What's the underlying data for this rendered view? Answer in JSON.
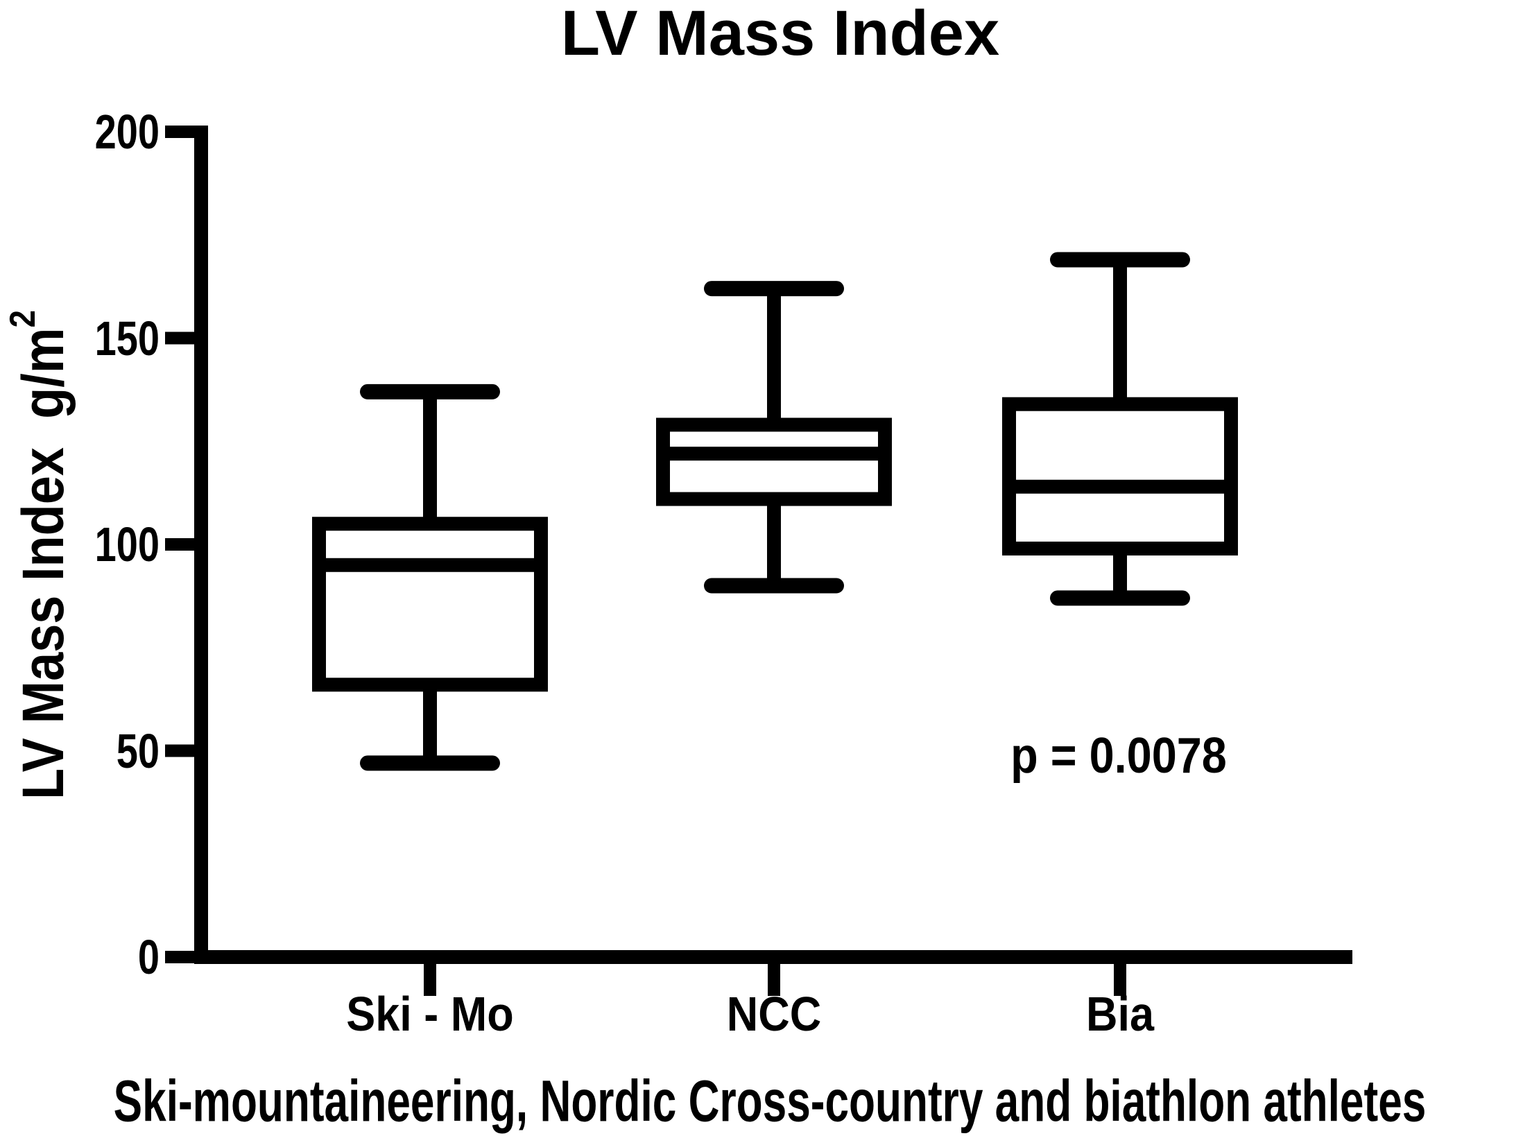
{
  "title": "LV Mass Index",
  "y_axis": {
    "label": "LV Mass Index  g/m",
    "label_sup": "2",
    "tick_labels": [
      "0",
      "50",
      "100",
      "150",
      "200"
    ]
  },
  "x_axis": {
    "caption": "Ski-mountaineering, Nordic Cross-country and biathlon athletes"
  },
  "annotation": {
    "p_value": "p = 0.0078"
  },
  "chart_data": {
    "type": "boxplot",
    "title": "LV Mass Index",
    "ylabel": "LV Mass Index g/m2",
    "xlabel": "Ski-mountaineering, Nordic Cross-country and biathlon athletes",
    "ylim": [
      0,
      200
    ],
    "yticks": [
      0,
      50,
      100,
      150,
      200
    ],
    "categories": [
      "Ski - Mo",
      "NCC",
      "Bia"
    ],
    "series": [
      {
        "name": "Ski - Mo",
        "min": 47,
        "q1": 66,
        "median": 95,
        "q3": 105,
        "max": 137
      },
      {
        "name": "NCC",
        "min": 90,
        "q1": 111,
        "median": 122,
        "q3": 129,
        "max": 162
      },
      {
        "name": "Bia",
        "min": 87,
        "q1": 99,
        "median": 114,
        "q3": 134,
        "max": 169
      }
    ],
    "annotations": [
      {
        "text": "p = 0.0078",
        "near_category": "Bia",
        "y_value": 50
      }
    ],
    "grid": false,
    "legend": false,
    "colors": {
      "stroke": "#000000",
      "fill": "#ffffff"
    }
  }
}
